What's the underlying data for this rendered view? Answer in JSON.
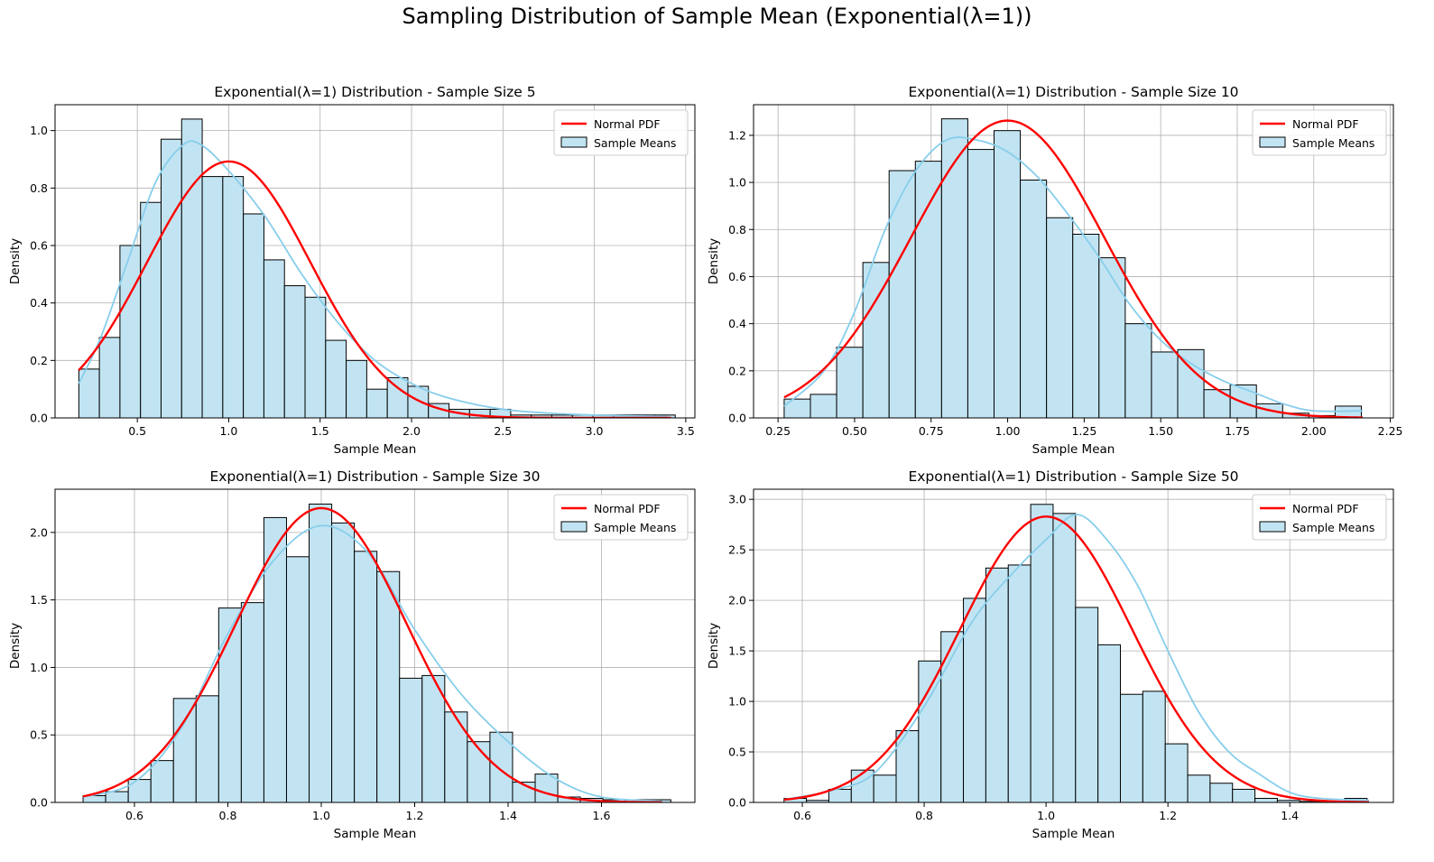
{
  "figure": {
    "title": "Sampling Distribution of Sample Mean (Exponential(λ=1))",
    "colors": {
      "bar_fill": "#c2e4f2",
      "bar_edge": "#000000",
      "kde": "#87ceeb",
      "normal_pdf": "#ff0000",
      "grid": "#b0b0b0"
    }
  },
  "chart_data": [
    {
      "type": "bar",
      "title": "Exponential(λ=1) Distribution - Sample Size 5",
      "xlabel": "Sample Mean",
      "ylabel": "Density",
      "xlim": [
        0.05,
        3.55
      ],
      "ylim": [
        0,
        1.09
      ],
      "xticks": [
        0.5,
        1.0,
        1.5,
        2.0,
        2.5,
        3.0,
        3.5
      ],
      "xtick_labels": [
        "0.5",
        "1.0",
        "1.5",
        "2.0",
        "2.5",
        "3.0",
        "3.5"
      ],
      "yticks": [
        0.0,
        0.2,
        0.4,
        0.6,
        0.8,
        1.0
      ],
      "ytick_labels": [
        "0.0",
        "0.2",
        "0.4",
        "0.6",
        "0.8",
        "1.0"
      ],
      "grid": true,
      "legend": {
        "position": "top-right",
        "entries": [
          "Normal PDF",
          "Sample Means"
        ]
      },
      "bins_start": 0.18,
      "bin_width": 0.1125,
      "densities": [
        0.17,
        0.28,
        0.6,
        0.75,
        0.97,
        1.04,
        0.84,
        0.84,
        0.71,
        0.55,
        0.46,
        0.42,
        0.27,
        0.2,
        0.1,
        0.14,
        0.11,
        0.05,
        0.03,
        0.03,
        0.03,
        0.01,
        0.01,
        0.01,
        0.01,
        0.01,
        0.01,
        0.01,
        0.01
      ],
      "kde_points": [
        [
          0.18,
          0.12
        ],
        [
          0.3,
          0.28
        ],
        [
          0.45,
          0.55
        ],
        [
          0.6,
          0.82
        ],
        [
          0.75,
          0.95
        ],
        [
          0.85,
          0.95
        ],
        [
          1.0,
          0.86
        ],
        [
          1.2,
          0.7
        ],
        [
          1.4,
          0.5
        ],
        [
          1.6,
          0.33
        ],
        [
          1.8,
          0.2
        ],
        [
          2.0,
          0.12
        ],
        [
          2.2,
          0.07
        ],
        [
          2.5,
          0.03
        ],
        [
          2.8,
          0.015
        ],
        [
          3.1,
          0.008
        ],
        [
          3.4,
          0.005
        ]
      ],
      "normal": {
        "mean": 1.0,
        "sd": 0.447,
        "x_range": [
          0.18,
          3.42
        ]
      }
    },
    {
      "type": "bar",
      "title": "Exponential(λ=1) Distribution - Sample Size 10",
      "xlabel": "Sample Mean",
      "ylabel": "Density",
      "xlim": [
        0.17,
        2.26
      ],
      "ylim": [
        0,
        1.33
      ],
      "xticks": [
        0.25,
        0.5,
        0.75,
        1.0,
        1.25,
        1.5,
        1.75,
        2.0,
        2.25
      ],
      "xtick_labels": [
        "0.25",
        "0.50",
        "0.75",
        "1.00",
        "1.25",
        "1.50",
        "1.75",
        "2.00",
        "2.25"
      ],
      "yticks": [
        0.0,
        0.2,
        0.4,
        0.6,
        0.8,
        1.0,
        1.2
      ],
      "ytick_labels": [
        "0.0",
        "0.2",
        "0.4",
        "0.6",
        "0.8",
        "1.0",
        "1.2"
      ],
      "grid": true,
      "legend": {
        "position": "top-right",
        "entries": [
          "Normal PDF",
          "Sample Means"
        ]
      },
      "bins_start": 0.27,
      "bin_width": 0.0857,
      "densities": [
        0.08,
        0.1,
        0.3,
        0.66,
        1.05,
        1.09,
        1.27,
        1.14,
        1.22,
        1.01,
        0.85,
        0.78,
        0.68,
        0.4,
        0.28,
        0.29,
        0.12,
        0.14,
        0.06,
        0.02,
        0.01,
        0.05
      ],
      "kde_points": [
        [
          0.27,
          0.05
        ],
        [
          0.4,
          0.2
        ],
        [
          0.5,
          0.45
        ],
        [
          0.6,
          0.8
        ],
        [
          0.7,
          1.05
        ],
        [
          0.8,
          1.18
        ],
        [
          0.9,
          1.18
        ],
        [
          1.0,
          1.13
        ],
        [
          1.1,
          1.02
        ],
        [
          1.2,
          0.86
        ],
        [
          1.3,
          0.68
        ],
        [
          1.4,
          0.48
        ],
        [
          1.5,
          0.33
        ],
        [
          1.6,
          0.23
        ],
        [
          1.7,
          0.16
        ],
        [
          1.8,
          0.11
        ],
        [
          1.9,
          0.06
        ],
        [
          2.0,
          0.03
        ],
        [
          2.16,
          0.03
        ]
      ],
      "normal": {
        "mean": 1.0,
        "sd": 0.316,
        "x_range": [
          0.27,
          2.16
        ]
      }
    },
    {
      "type": "bar",
      "title": "Exponential(λ=1) Distribution - Sample Size 30",
      "xlabel": "Sample Mean",
      "ylabel": "Density",
      "xlim": [
        0.43,
        1.8
      ],
      "ylim": [
        0,
        2.32
      ],
      "xticks": [
        0.6,
        0.8,
        1.0,
        1.2,
        1.4,
        1.6
      ],
      "xtick_labels": [
        "0.6",
        "0.8",
        "1.0",
        "1.2",
        "1.4",
        "1.6"
      ],
      "yticks": [
        0.0,
        0.5,
        1.0,
        1.5,
        2.0
      ],
      "ytick_labels": [
        "0.0",
        "0.5",
        "1.0",
        "1.5",
        "2.0"
      ],
      "grid": true,
      "legend": {
        "position": "top-right",
        "entries": [
          "Normal PDF",
          "Sample Means"
        ]
      },
      "bins_start": 0.49,
      "bin_width": 0.0484,
      "densities": [
        0.05,
        0.08,
        0.17,
        0.31,
        0.77,
        0.79,
        1.44,
        1.48,
        2.11,
        1.82,
        2.21,
        2.07,
        1.86,
        1.71,
        0.92,
        0.94,
        0.67,
        0.45,
        0.52,
        0.15,
        0.21,
        0.04,
        0.03,
        0.02,
        0.02,
        0.02
      ],
      "kde_points": [
        [
          0.49,
          0.04
        ],
        [
          0.6,
          0.15
        ],
        [
          0.7,
          0.55
        ],
        [
          0.8,
          1.25
        ],
        [
          0.9,
          1.8
        ],
        [
          1.0,
          2.05
        ],
        [
          1.1,
          1.85
        ],
        [
          1.2,
          1.28
        ],
        [
          1.3,
          0.8
        ],
        [
          1.4,
          0.45
        ],
        [
          1.5,
          0.18
        ],
        [
          1.6,
          0.04
        ],
        [
          1.73,
          0.01
        ]
      ],
      "normal": {
        "mean": 1.0,
        "sd": 0.183,
        "x_range": [
          0.49,
          1.73
        ]
      }
    },
    {
      "type": "bar",
      "title": "Exponential(λ=1) Distribution - Sample Size 50",
      "xlabel": "Sample Mean",
      "ylabel": "Density",
      "xlim": [
        0.52,
        1.57
      ],
      "ylim": [
        0,
        3.1
      ],
      "xticks": [
        0.6,
        0.8,
        1.0,
        1.2,
        1.4
      ],
      "xtick_labels": [
        "0.6",
        "0.8",
        "1.0",
        "1.2",
        "1.4"
      ],
      "yticks": [
        0.0,
        0.5,
        1.0,
        1.5,
        2.0,
        2.5,
        3.0
      ],
      "ytick_labels": [
        "0.0",
        "0.5",
        "1.0",
        "1.5",
        "2.0",
        "2.5",
        "3.0"
      ],
      "grid": true,
      "legend": {
        "position": "top-right",
        "entries": [
          "Normal PDF",
          "Sample Means"
        ]
      },
      "bins_start": 0.57,
      "bin_width": 0.0368,
      "densities": [
        0.04,
        0.02,
        0.13,
        0.32,
        0.27,
        0.71,
        1.4,
        1.69,
        2.02,
        2.32,
        2.35,
        2.95,
        2.86,
        1.93,
        1.56,
        1.07,
        1.1,
        0.58,
        0.27,
        0.19,
        0.13,
        0.04,
        0.02,
        0.01,
        0.01,
        0.04
      ],
      "kde_points": [
        [
          0.57,
          0.03
        ],
        [
          0.65,
          0.12
        ],
        [
          0.72,
          0.3
        ],
        [
          0.8,
          0.95
        ],
        [
          0.88,
          1.8
        ],
        [
          0.95,
          2.3
        ],
        [
          1.0,
          2.6
        ],
        [
          1.05,
          2.85
        ],
        [
          1.1,
          2.6
        ],
        [
          1.15,
          2.15
        ],
        [
          1.2,
          1.5
        ],
        [
          1.25,
          0.9
        ],
        [
          1.3,
          0.5
        ],
        [
          1.35,
          0.28
        ],
        [
          1.4,
          0.1
        ],
        [
          1.45,
          0.04
        ],
        [
          1.53,
          0.02
        ]
      ],
      "normal": {
        "mean": 1.0,
        "sd": 0.141,
        "x_range": [
          0.57,
          1.53
        ]
      }
    }
  ]
}
